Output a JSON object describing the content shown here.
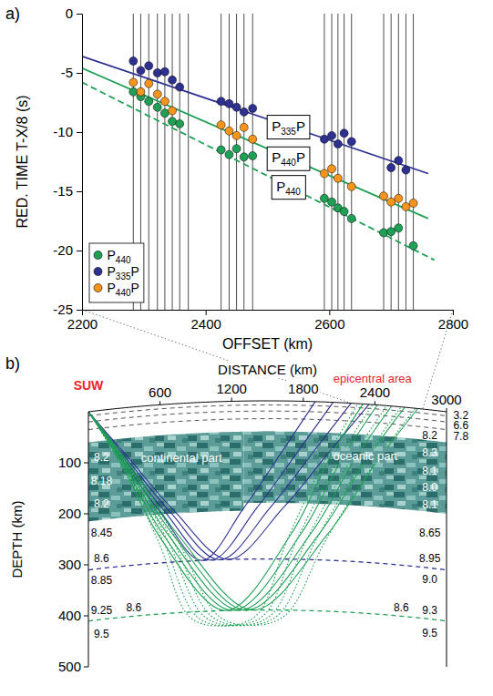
{
  "chart_data": [
    {
      "type": "scatter",
      "panel_label": "a)",
      "x_label": "OFFSET (km)",
      "y_label": "RED. TIME T-X/8 (s)",
      "xlim": [
        2200,
        2800
      ],
      "xticks": [
        2200,
        2400,
        2600,
        2800
      ],
      "ylim": [
        -25,
        0
      ],
      "yticks": [
        0,
        -5,
        -10,
        -15,
        -20,
        -25
      ],
      "legend": "lower left",
      "traces": [
        2283,
        2295,
        2308,
        2322,
        2334,
        2346,
        2358,
        2372,
        2425,
        2438,
        2450,
        2462,
        2476,
        2592,
        2604,
        2614,
        2624,
        2636,
        2688,
        2700,
        2712,
        2724,
        2736
      ],
      "series": [
        {
          "name": "P440",
          "type": "scatter",
          "marker": "circle",
          "color": "#1fa055",
          "x": [
            2283,
            2295,
            2308,
            2322,
            2334,
            2346,
            2358,
            2425,
            2438,
            2450,
            2462,
            2476,
            2592,
            2604,
            2614,
            2624,
            2636,
            2688,
            2700,
            2712,
            2736
          ],
          "values": [
            -6.6,
            -7.0,
            -7.4,
            -7.9,
            -8.4,
            -9.1,
            -9.3,
            -11.5,
            -11.9,
            -11.4,
            -12.1,
            -12.0,
            -15.6,
            -15.9,
            -16.4,
            -16.7,
            -17.3,
            -18.5,
            -18.4,
            -18.1,
            -19.6
          ]
        },
        {
          "name": "P335P",
          "type": "scatter",
          "marker": "circle",
          "color": "#2e3192",
          "x": [
            2283,
            2295,
            2308,
            2322,
            2334,
            2346,
            2358,
            2425,
            2438,
            2450,
            2462,
            2476,
            2592,
            2604,
            2614,
            2624,
            2636,
            2700,
            2712,
            2724
          ],
          "values": [
            -4.0,
            -4.8,
            -4.4,
            -5.0,
            -4.9,
            -5.6,
            -6.2,
            -7.4,
            -7.6,
            -7.9,
            -8.3,
            -8.0,
            -10.6,
            -10.3,
            -11.0,
            -10.1,
            -10.8,
            -13.0,
            -12.4,
            -13.2
          ]
        },
        {
          "name": "P440P",
          "type": "scatter",
          "marker": "circle",
          "color": "#f7941d",
          "x": [
            2283,
            2295,
            2308,
            2322,
            2334,
            2346,
            2425,
            2438,
            2450,
            2462,
            2476,
            2592,
            2604,
            2614,
            2636,
            2688,
            2700,
            2712,
            2724,
            2736
          ],
          "values": [
            -5.8,
            -6.6,
            -5.9,
            -6.8,
            -7.4,
            -8.2,
            -9.4,
            -9.9,
            -10.3,
            -9.6,
            -10.6,
            -13.5,
            -13.1,
            -13.9,
            -14.6,
            -15.4,
            -15.9,
            -15.6,
            -16.3,
            -16.0
          ]
        },
        {
          "name": "P335P",
          "type": "line",
          "line_style": "solid",
          "color": "#2e3192",
          "x": [
            2200,
            2760
          ],
          "values": [
            -3.6,
            -13.5
          ]
        },
        {
          "name": "P440P",
          "type": "line",
          "line_style": "solid",
          "color": "#1fa055",
          "x": [
            2200,
            2760
          ],
          "values": [
            -4.6,
            -17.3
          ]
        },
        {
          "name": "P440",
          "type": "line",
          "line_style": "dashed",
          "color": "#1fa055",
          "x": [
            2200,
            2770
          ],
          "values": [
            -5.8,
            -20.8
          ]
        }
      ]
    },
    {
      "type": "diagram",
      "panel_label": "b)",
      "x_label": "DISTANCE (km)",
      "y_label": "DEPTH (km)",
      "xlim": [
        0,
        3000
      ],
      "xticks": [
        600,
        1200,
        1800,
        2400,
        3000
      ],
      "ylim": [
        0,
        500
      ],
      "yticks": [
        100,
        200,
        300,
        400,
        500
      ],
      "annotations": [
        {
          "text": "SUW",
          "x": 0,
          "color": "#e8262b"
        },
        {
          "text": "epicentral area",
          "x": 2380,
          "color": "#e8262b"
        }
      ],
      "layers": [
        {
          "name": "continental part",
          "x": [
            0,
            1300
          ],
          "depth": [
            60,
            215
          ]
        },
        {
          "name": "oceanic part",
          "x": [
            1300,
            3000
          ],
          "depth": [
            60,
            200
          ]
        }
      ],
      "interfaces": [
        {
          "depth": 8,
          "color": "#000000",
          "line_style": "dashed"
        },
        {
          "depth": 20,
          "color": "#000000",
          "line_style": "dashed"
        },
        {
          "depth": 35,
          "color": "#000000",
          "line_style": "dashed"
        },
        {
          "depth": 310,
          "color": "#2e3192",
          "line_style": "dashed"
        },
        {
          "depth": 410,
          "color": "#1fa055",
          "line_style": "dashed"
        }
      ],
      "velocity_labels": [
        {
          "text": "8.2",
          "x": 110,
          "depth": 100
        },
        {
          "text": "8.18",
          "x": 110,
          "depth": 145
        },
        {
          "text": "8.2",
          "x": 110,
          "depth": 190
        },
        {
          "text": "8.45",
          "x": 110,
          "depth": 248
        },
        {
          "text": "8.6",
          "x": 110,
          "depth": 298
        },
        {
          "text": "8.85",
          "x": 110,
          "depth": 340
        },
        {
          "text": "9.25",
          "x": 110,
          "depth": 400
        },
        {
          "text": "8.6",
          "x": 380,
          "depth": 400
        },
        {
          "text": "9.5",
          "x": 110,
          "depth": 445
        },
        {
          "text": "8.2",
          "x": 2860,
          "depth": 57
        },
        {
          "text": "8.3",
          "x": 2860,
          "depth": 92
        },
        {
          "text": "8.1",
          "x": 2860,
          "depth": 127
        },
        {
          "text": "8.0",
          "x": 2860,
          "depth": 160
        },
        {
          "text": "8.1",
          "x": 2860,
          "depth": 193
        },
        {
          "text": "8.65",
          "x": 2860,
          "depth": 248
        },
        {
          "text": "8.95",
          "x": 2860,
          "depth": 298
        },
        {
          "text": "9.0",
          "x": 2860,
          "depth": 340
        },
        {
          "text": "9.3",
          "x": 2860,
          "depth": 400
        },
        {
          "text": "8.6",
          "x": 2620,
          "depth": 400
        },
        {
          "text": "9.5",
          "x": 2860,
          "depth": 445
        },
        {
          "text": "3.2",
          "x": 3120,
          "depth": 10
        },
        {
          "text": "6.6",
          "x": 3120,
          "depth": 30
        },
        {
          "text": "7.8",
          "x": 3120,
          "depth": 52
        }
      ],
      "rays": [
        {
          "color": "#2e3192",
          "line_style": "solid",
          "paths": [
            [
              [
                0,
                0
              ],
              [
                280,
                100
              ],
              [
                600,
                210
              ],
              [
                950,
                310
              ],
              [
                1300,
                210
              ],
              [
                1620,
                100
              ],
              [
                1900,
                0
              ]
            ],
            [
              [
                0,
                0
              ],
              [
                300,
                100
              ],
              [
                640,
                210
              ],
              [
                1025,
                310
              ],
              [
                1410,
                210
              ],
              [
                1750,
                100
              ],
              [
                2050,
                0
              ]
            ],
            [
              [
                0,
                0
              ],
              [
                320,
                100
              ],
              [
                680,
                210
              ],
              [
                1100,
                310
              ],
              [
                1520,
                210
              ],
              [
                1880,
                100
              ],
              [
                2200,
                0
              ]
            ],
            [
              [
                0,
                0
              ],
              [
                340,
                100
              ],
              [
                720,
                210
              ],
              [
                1175,
                310
              ],
              [
                1630,
                210
              ],
              [
                2010,
                100
              ],
              [
                2350,
                0
              ]
            ]
          ]
        },
        {
          "color": "#1fa055",
          "line_style": "solid",
          "paths": [
            [
              [
                0,
                0
              ],
              [
                280,
                110
              ],
              [
                600,
                260
              ],
              [
                1150,
                410
              ],
              [
                1700,
                260
              ],
              [
                2020,
                110
              ],
              [
                2300,
                0
              ]
            ],
            [
              [
                0,
                0
              ],
              [
                295,
                110
              ],
              [
                640,
                260
              ],
              [
                1210,
                410
              ],
              [
                1780,
                260
              ],
              [
                2125,
                110
              ],
              [
                2420,
                0
              ]
            ],
            [
              [
                0,
                0
              ],
              [
                310,
                110
              ],
              [
                680,
                260
              ],
              [
                1270,
                410
              ],
              [
                1860,
                260
              ],
              [
                2230,
                110
              ],
              [
                2540,
                0
              ]
            ],
            [
              [
                0,
                0
              ],
              [
                325,
                110
              ],
              [
                720,
                260
              ],
              [
                1325,
                410
              ],
              [
                1930,
                260
              ],
              [
                2325,
                110
              ],
              [
                2650,
                0
              ]
            ],
            [
              [
                0,
                0
              ],
              [
                340,
                110
              ],
              [
                760,
                260
              ],
              [
                1380,
                410
              ],
              [
                2000,
                260
              ],
              [
                2420,
                110
              ],
              [
                2760,
                0
              ]
            ]
          ]
        },
        {
          "color": "#1fa055",
          "line_style": "dotted",
          "paths": [
            [
              [
                0,
                0
              ],
              [
                270,
                110
              ],
              [
                590,
                270
              ],
              [
                850,
                420
              ],
              [
                1130,
                440
              ],
              [
                1410,
                420
              ],
              [
                1670,
                270
              ],
              [
                1990,
                110
              ],
              [
                2260,
                0
              ]
            ],
            [
              [
                0,
                0
              ],
              [
                285,
                110
              ],
              [
                630,
                270
              ],
              [
                910,
                420
              ],
              [
                1190,
                440
              ],
              [
                1470,
                420
              ],
              [
                1750,
                270
              ],
              [
                2095,
                110
              ],
              [
                2380,
                0
              ]
            ],
            [
              [
                0,
                0
              ],
              [
                300,
                110
              ],
              [
                670,
                270
              ],
              [
                970,
                420
              ],
              [
                1250,
                440
              ],
              [
                1530,
                420
              ],
              [
                1830,
                270
              ],
              [
                2200,
                110
              ],
              [
                2500,
                0
              ]
            ],
            [
              [
                0,
                0
              ],
              [
                315,
                110
              ],
              [
                710,
                270
              ],
              [
                1030,
                420
              ],
              [
                1310,
                440
              ],
              [
                1590,
                420
              ],
              [
                1910,
                270
              ],
              [
                2305,
                110
              ],
              [
                2620,
                0
              ]
            ],
            [
              [
                0,
                0
              ],
              [
                330,
                110
              ],
              [
                750,
                270
              ],
              [
                1090,
                420
              ],
              [
                1370,
                440
              ],
              [
                1650,
                420
              ],
              [
                1990,
                270
              ],
              [
                2410,
                110
              ],
              [
                2740,
                0
              ]
            ]
          ]
        }
      ]
    }
  ]
}
